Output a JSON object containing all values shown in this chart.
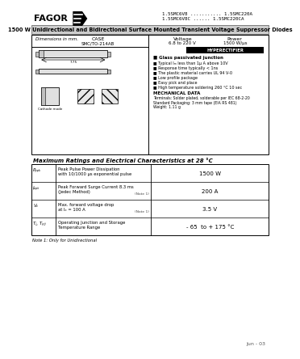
{
  "bg_color": "#ffffff",
  "header_model_line1": "1.5SMC6V8 ........... 1.5SMC220A",
  "header_model_line2": "1.5SMC6V8C ...... 1.5SMC220CA",
  "title_text": "1500 W Unidirectional and Bidirectional Surface Mounted Transient Voltage Suppressor Diodes",
  "dims_text": "Dimensions in mm.",
  "case_line1": "CASE",
  "case_line2": "SMC/TO-214AB",
  "voltage_line1": "Voltage",
  "voltage_line2": "6.8 to 220 V",
  "power_line1": "Power",
  "power_line2": "1500 W/μs",
  "hyperectifier": "HYPERECTIFIER",
  "features_title": "Glass passivated junction",
  "features": [
    "Typical Iₘ less than 1μ A above 10V",
    "Response time typically < 1ns",
    "The plastic material carries UL 94 V-0",
    "Low profile package",
    "Easy pick and place",
    "High temperature soldering 260 °C 10 sec"
  ],
  "mech_title": "MECHANICAL DATA",
  "mech_lines": [
    "Terminals: Solder plated, solderable per IEC 68-2-20",
    "Standard Packaging: 3 mm tape (EIA RS 481)",
    "Weight: 1.11 g"
  ],
  "table_title": "Maximum Ratings and Electrical Characteristics at 28 °C",
  "table_rows": [
    {
      "symbol": "Pₚₚₖ",
      "desc1": "Peak Pulse Power Dissipation",
      "desc2": "with 10/1000 μs exponential pulse",
      "note": "",
      "value": "1500 W"
    },
    {
      "symbol": "Iₚₚₖ",
      "desc1": "Peak Forward Surge Current 8.3 ms",
      "desc2": "(Jedec Method)",
      "note": "(Note 1)",
      "value": "200 A"
    },
    {
      "symbol": "Vₑ",
      "desc1": "Max. forward voltage drop",
      "desc2": "at Iₑ = 100 A",
      "note": "(Note 1)",
      "value": "3.5 V"
    },
    {
      "symbol": "Tⱼ, Tₚⱼⱼ",
      "desc1": "Operating Junction and Storage",
      "desc2": "Temperature Range",
      "note": "",
      "value": "- 65  to + 175 °C"
    }
  ],
  "note_text": "Note 1: Only for Unidirectional",
  "date_text": "Jun - 03",
  "fagor_text": "FAGOR"
}
